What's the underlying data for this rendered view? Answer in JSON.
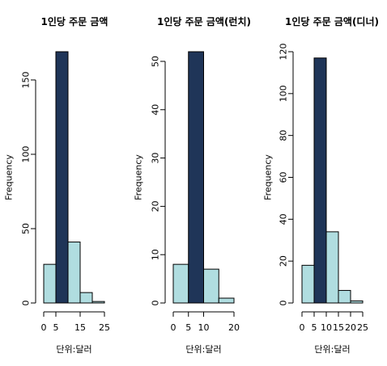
{
  "chart_data": [
    {
      "type": "bar",
      "subtype": "histogram",
      "title": "1인당 주문 금액",
      "xlabel": "단위:달러",
      "ylabel": "Frequency",
      "bin_edges": [
        0,
        5,
        10,
        15,
        20,
        25
      ],
      "values": [
        26,
        169,
        41,
        7,
        1
      ],
      "bar_colors": [
        "#b0dde0",
        "#1f3558",
        "#b0dde0",
        "#b0dde0",
        "#b0dde0"
      ],
      "xticks": [
        0,
        5,
        15,
        25
      ],
      "xlim": [
        0,
        25
      ],
      "yticks": [
        0,
        50,
        100,
        150
      ],
      "ylim": [
        0,
        169
      ]
    },
    {
      "type": "bar",
      "subtype": "histogram",
      "title": "1인당 주문 금액(런치)",
      "xlabel": "단위:달러",
      "ylabel": "Frequency",
      "bin_edges": [
        0,
        5,
        10,
        15,
        20
      ],
      "values": [
        8,
        52,
        7,
        1
      ],
      "bar_colors": [
        "#b0dde0",
        "#1f3558",
        "#b0dde0",
        "#b0dde0"
      ],
      "xticks": [
        0,
        5,
        10,
        20
      ],
      "xlim": [
        0,
        20
      ],
      "yticks": [
        0,
        10,
        20,
        30,
        40,
        50
      ],
      "ylim": [
        0,
        52
      ]
    },
    {
      "type": "bar",
      "subtype": "histogram",
      "title": "1인당 주문 금액(디너)",
      "xlabel": "단위:달러",
      "ylabel": "Frequency",
      "bin_edges": [
        0,
        5,
        10,
        15,
        20,
        25
      ],
      "values": [
        18,
        117,
        34,
        6,
        1
      ],
      "bar_colors": [
        "#b0dde0",
        "#1f3558",
        "#b0dde0",
        "#b0dde0",
        "#b0dde0"
      ],
      "xticks": [
        0,
        5,
        10,
        15,
        20,
        25
      ],
      "xlim": [
        0,
        25
      ],
      "yticks": [
        0,
        20,
        40,
        60,
        80,
        100,
        120
      ],
      "ylim": [
        0,
        120
      ]
    }
  ]
}
